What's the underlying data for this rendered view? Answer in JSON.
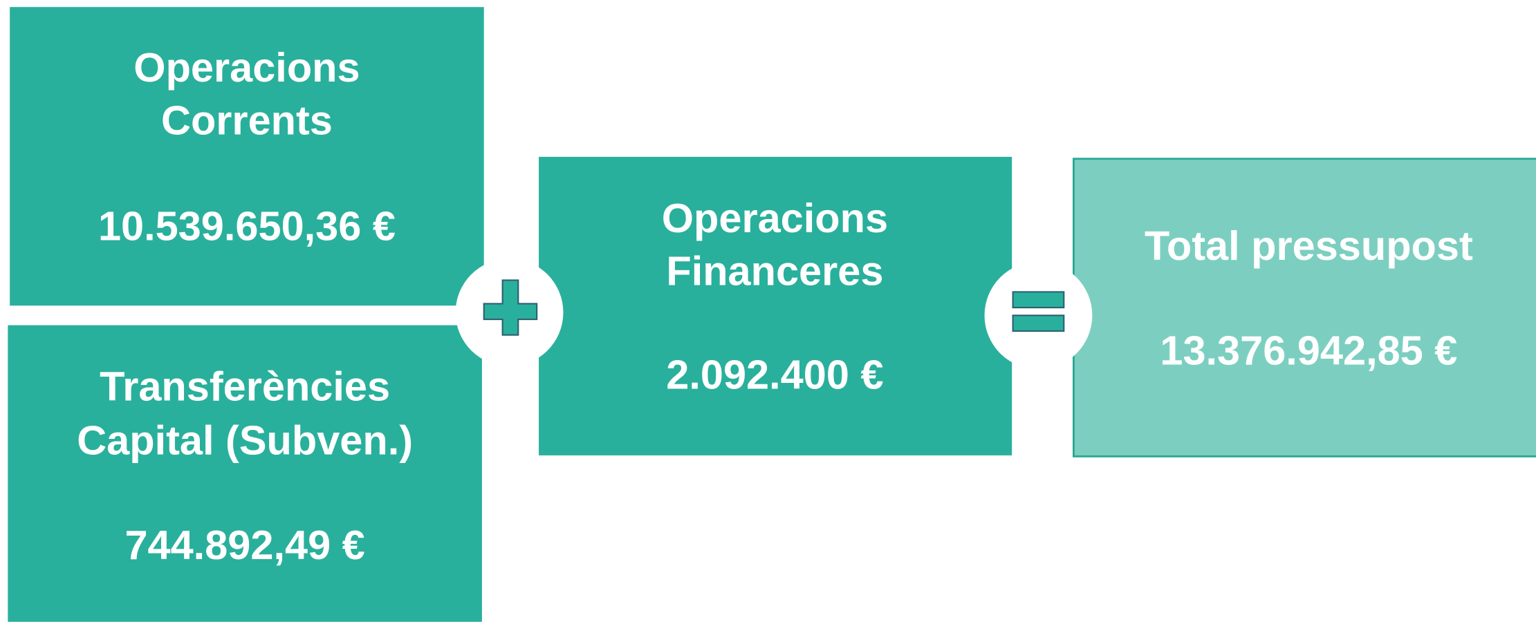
{
  "boxes": [
    {
      "title": [
        "Operacions",
        "Corrents"
      ],
      "value": "10.539.650,36 €"
    },
    {
      "title": [
        "Transferències",
        "Capital (Subven.)"
      ],
      "value": "744.892,49 €"
    },
    {
      "title": [
        "Operacions",
        "Financeres"
      ],
      "value": "2.092.400 €"
    },
    {
      "title": [
        "Total pressupost"
      ],
      "value": "13.376.942,85 €"
    }
  ]
}
